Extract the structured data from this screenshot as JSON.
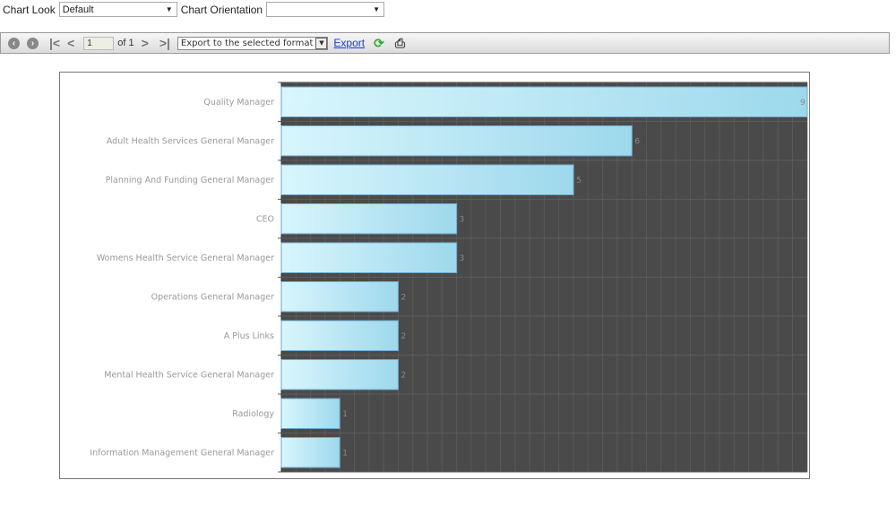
{
  "controls": {
    "chart_look_label": "Chart Look",
    "chart_look_value": "Default",
    "chart_orientation_label": "Chart Orientation",
    "chart_orientation_value": ""
  },
  "toolbar": {
    "page_value": "1",
    "page_of": "of 1",
    "export_format": "Export to the selected format",
    "export_link": "Export"
  },
  "chart_data": {
    "type": "bar",
    "orientation": "horizontal",
    "categories": [
      "Quality Manager",
      "Adult Health Services General Manager",
      "Planning And Funding General Manager",
      "CEO",
      "Womens Health Service General Manager",
      "Operations General Manager",
      "A Plus Links",
      "Mental Health Service General Manager",
      "Radiology",
      "Information Management General Manager"
    ],
    "values": [
      9,
      6,
      5,
      3,
      3,
      2,
      2,
      2,
      1,
      1
    ],
    "xlim": [
      0,
      9
    ],
    "title": "",
    "xlabel": "",
    "ylabel": "",
    "grid": true,
    "colors": {
      "bar_start": "#d8f6fd",
      "bar_end": "#9dd8ec",
      "plot_bg": "#4a4a4a",
      "bar_border": "#6fa8d0"
    }
  }
}
